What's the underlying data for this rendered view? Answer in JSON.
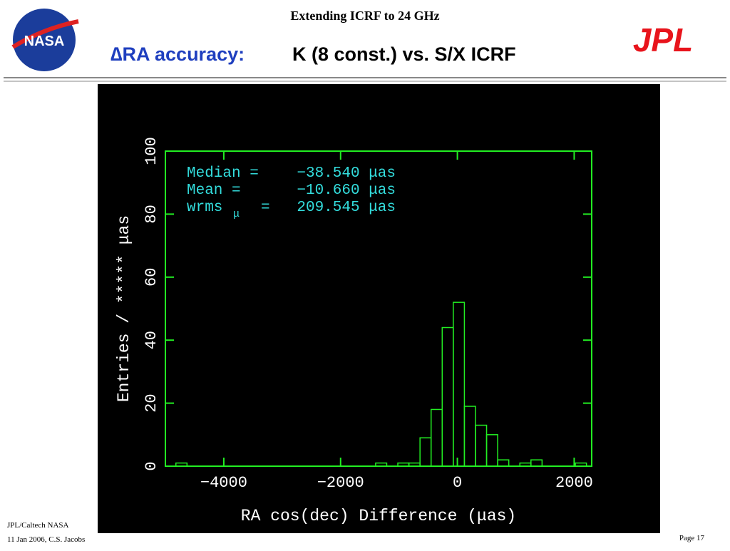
{
  "header": {
    "subtitle": "Extending ICRF to 24 GHz",
    "title_part1": "∆RA accuracy:",
    "title_part2": "K (8 const.) vs. S/X ICRF",
    "logo_left": "NASA",
    "logo_right": "JPL"
  },
  "footer": {
    "line1": "JPL/Caltech NASA",
    "line2": "11 Jan 2006, C.S. Jacobs",
    "page": "Page 17"
  },
  "chart_data": {
    "type": "histogram",
    "bins": [
      -4820,
      -4630,
      -4440,
      -4250,
      -4060,
      -3870,
      -3680,
      -3490,
      -3300,
      -3110,
      -2920,
      -2730,
      -2540,
      -2350,
      -2160,
      -1970,
      -1780,
      -1590,
      -1400,
      -1210,
      -1020,
      -830,
      -640,
      -450,
      -260,
      -70,
      120,
      310,
      500,
      690,
      880,
      1070,
      1260,
      1450,
      1640,
      1830,
      2020,
      2210
    ],
    "values": [
      1,
      0,
      0,
      0,
      0,
      0,
      0,
      0,
      0,
      0,
      0,
      0,
      0,
      0,
      0,
      0,
      0,
      0,
      1,
      0,
      1,
      1,
      9,
      18,
      44,
      52,
      19,
      13,
      10,
      2,
      0,
      1,
      2,
      0,
      0,
      0,
      1
    ],
    "color": "#22ee22",
    "xlabel": "RA cos(dec) Difference (μas)",
    "ylabel": "Entries / ***** μas",
    "xlim": [
      -5000,
      2300
    ],
    "ylim": [
      0,
      100
    ],
    "xticks": [
      {
        "value": -4000,
        "label": "−4000"
      },
      {
        "value": -2000,
        "label": "−2000"
      },
      0,
      2000
    ],
    "yticks": [
      0,
      20,
      40,
      60,
      80,
      100
    ],
    "stats": [
      {
        "label": "Median =",
        "value": "−38.540 μas"
      },
      {
        "label": "Mean   =",
        "value": "−10.660 μas"
      },
      {
        "label": "wrms",
        "subscript": "μ",
        "eq": "=",
        "value": "209.545 μas"
      }
    ],
    "stats_color": "#33dddd"
  }
}
